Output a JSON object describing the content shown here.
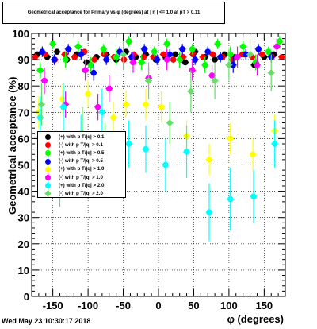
{
  "title": "Geometrical acceptance for Primary vs φ (degrees) at | η | <= 1.0 at pT > 0.11",
  "footer": "Wed May 23 10:30:17 2018",
  "chart_data": {
    "type": "scatter",
    "xlabel": "φ (degrees)",
    "ylabel": "Geometrical acceptance (%)",
    "xlim": [
      -180,
      180
    ],
    "ylim": [
      0,
      100
    ],
    "xticks": [
      -150,
      -100,
      -50,
      0,
      50,
      100,
      150
    ],
    "yticks": [
      0,
      10,
      20,
      30,
      40,
      50,
      60,
      70,
      80,
      90,
      100
    ],
    "grid": true,
    "legend_position": "left-middle",
    "series": [
      {
        "name": "(+) with p T/|q| > 0.1",
        "color": "#000000",
        "marker": "circle",
        "x": [
          -172,
          -158,
          -144,
          -130,
          -116,
          -102,
          -88,
          -74,
          -60,
          -46,
          -32,
          -18,
          -4,
          10,
          24,
          38,
          52,
          66,
          80,
          94,
          108,
          122,
          136,
          150,
          164
        ],
        "y": [
          92,
          91,
          93,
          90,
          92,
          89,
          91,
          92,
          90,
          93,
          91,
          92,
          90,
          91,
          92,
          89,
          93,
          91,
          90,
          92,
          91,
          92,
          88,
          91,
          92
        ],
        "err": [
          1,
          1,
          1,
          1,
          1,
          1,
          1,
          1,
          1,
          1,
          1,
          1,
          1,
          1,
          1,
          1,
          1,
          1,
          1,
          1,
          1,
          1,
          1,
          1,
          1
        ]
      },
      {
        "name": "(-) with p T/|q| > 0.1",
        "color": "#ff0000",
        "marker": "circle",
        "x": [
          -175,
          -161,
          -147,
          -133,
          -119,
          -105,
          -91,
          -77,
          -63,
          -49,
          -35,
          -21,
          -7,
          7,
          21,
          35,
          49,
          63,
          77,
          91,
          105,
          119,
          133,
          147,
          161,
          175
        ],
        "y": [
          91,
          92,
          90,
          92,
          91,
          93,
          90,
          92,
          91,
          90,
          92,
          91,
          91,
          92,
          90,
          91,
          92,
          91,
          92,
          91,
          90,
          92,
          91,
          92,
          91,
          91
        ],
        "err": [
          1,
          1,
          1,
          1,
          1,
          1,
          1,
          1,
          1,
          1,
          1,
          1,
          1,
          1,
          1,
          1,
          1,
          1,
          1,
          1,
          1,
          1,
          1,
          1,
          1,
          1
        ]
      },
      {
        "name": "(+) with p T/|q| > 0.5",
        "color": "#00ff00",
        "marker": "circle",
        "x": [
          -168,
          -150,
          -132,
          -114,
          -96,
          -78,
          -60,
          -42,
          -24,
          -6,
          12,
          30,
          48,
          66,
          84,
          102,
          120,
          138,
          156,
          172
        ],
        "y": [
          86,
          96,
          90,
          95,
          88,
          94,
          91,
          97,
          89,
          93,
          96,
          90,
          94,
          88,
          96,
          92,
          95,
          89,
          93,
          97
        ],
        "err": [
          3,
          2,
          3,
          2,
          3,
          2,
          3,
          2,
          3,
          2,
          2,
          3,
          2,
          3,
          2,
          3,
          2,
          3,
          2,
          2
        ]
      },
      {
        "name": "(-) with p T/|q| > 0.5",
        "color": "#0000ff",
        "marker": "circle",
        "x": [
          -165,
          -148,
          -128,
          -110,
          -92,
          -74,
          -55,
          -38,
          -20,
          -2,
          16,
          34,
          52,
          70,
          88,
          106,
          124,
          142,
          160
        ],
        "y": [
          93,
          90,
          94,
          92,
          85,
          90,
          93,
          91,
          94,
          90,
          92,
          94,
          90,
          93,
          91,
          88,
          92,
          94,
          91
        ],
        "err": [
          2,
          2,
          2,
          2,
          3,
          2,
          2,
          2,
          2,
          2,
          2,
          2,
          2,
          2,
          2,
          3,
          2,
          2,
          2
        ]
      },
      {
        "name": "(+) with p T/|q| > 1.0",
        "color": "#ffff00",
        "marker": "circle",
        "x": [
          -170,
          -136,
          -100,
          -64,
          -46,
          -18,
          4,
          40,
          72,
          102,
          134,
          165
        ],
        "y": [
          70,
          75,
          77,
          68,
          73,
          73,
          72,
          61,
          52,
          60,
          54,
          63
        ],
        "err": [
          6,
          6,
          5,
          6,
          5,
          6,
          6,
          6,
          6,
          6,
          6,
          6
        ]
      },
      {
        "name": "(-) with p T/|q| > 1.0",
        "color": "#ff00ff",
        "marker": "circle",
        "x": [
          -162,
          -132,
          -104,
          -86,
          -70,
          -36,
          -14,
          12,
          48,
          76,
          112,
          140,
          168
        ],
        "y": [
          82,
          73,
          86,
          72,
          79,
          89,
          83,
          90,
          86,
          84,
          91,
          88,
          95
        ],
        "err": [
          5,
          5,
          4,
          5,
          5,
          4,
          4,
          4,
          4,
          4,
          4,
          4,
          3
        ]
      },
      {
        "name": "(+) with p T/|q| > 2.0",
        "color": "#00ffff",
        "marker": "circle",
        "x": [
          -168,
          -135,
          -110,
          -80,
          -42,
          -18,
          10,
          40,
          72,
          102,
          135,
          165
        ],
        "y": [
          68,
          72,
          60,
          70,
          58,
          56,
          50,
          55,
          32,
          37,
          38,
          58
        ],
        "err": [
          8,
          9,
          9,
          9,
          9,
          9,
          10,
          10,
          11,
          12,
          10,
          9
        ]
      },
      {
        "name": "(-) with p T/|q| > 2.0",
        "color": "#66dd66",
        "marker": "diamond",
        "x": [
          -166,
          -140,
          -108,
          -76,
          -50,
          -14,
          16,
          46,
          80,
          100,
          130,
          160
        ],
        "y": [
          73,
          46,
          62,
          56,
          92,
          82,
          66,
          78,
          82,
          88,
          92,
          85
        ],
        "err": [
          8,
          12,
          10,
          10,
          6,
          7,
          8,
          8,
          7,
          6,
          6,
          7
        ]
      }
    ]
  }
}
